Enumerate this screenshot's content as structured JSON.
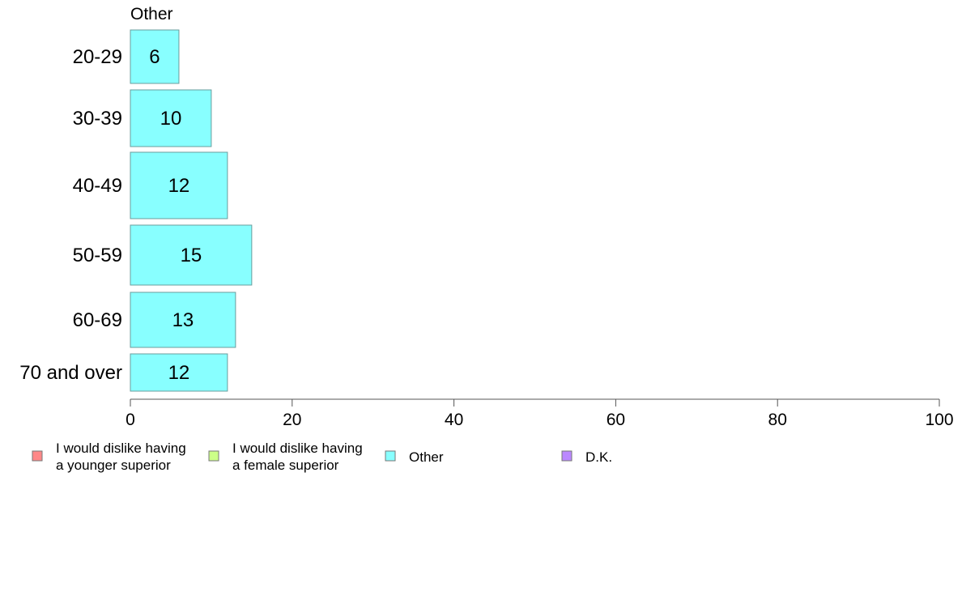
{
  "chart_data": {
    "type": "bar",
    "orientation": "horizontal",
    "title": "Other",
    "categories": [
      "20-29",
      "30-39",
      "40-49",
      "50-59",
      "60-69",
      "70 and over"
    ],
    "series": [
      {
        "name": "Other",
        "values": [
          6,
          10,
          12,
          15,
          13,
          12
        ],
        "color": "#88ffff"
      }
    ],
    "data_labels": [
      "6",
      "10",
      "12",
      "15",
      "13",
      "12"
    ],
    "xlim": [
      0,
      100
    ],
    "xticks": [
      0,
      20,
      40,
      60,
      80,
      100
    ],
    "xtick_labels": [
      "0",
      "20",
      "40",
      "60",
      "80",
      "100"
    ],
    "grid": false,
    "legend_position": "bottom",
    "legend": [
      {
        "label_lines": [
          "I would dislike having",
          "a younger superior"
        ],
        "color": "#ff8888"
      },
      {
        "label_lines": [
          "I would dislike having",
          "a female superior"
        ],
        "color": "#ccff88"
      },
      {
        "label_lines": [
          "Other"
        ],
        "color": "#88ffff"
      },
      {
        "label_lines": [
          "D.K."
        ],
        "color": "#bb88ff"
      }
    ]
  }
}
